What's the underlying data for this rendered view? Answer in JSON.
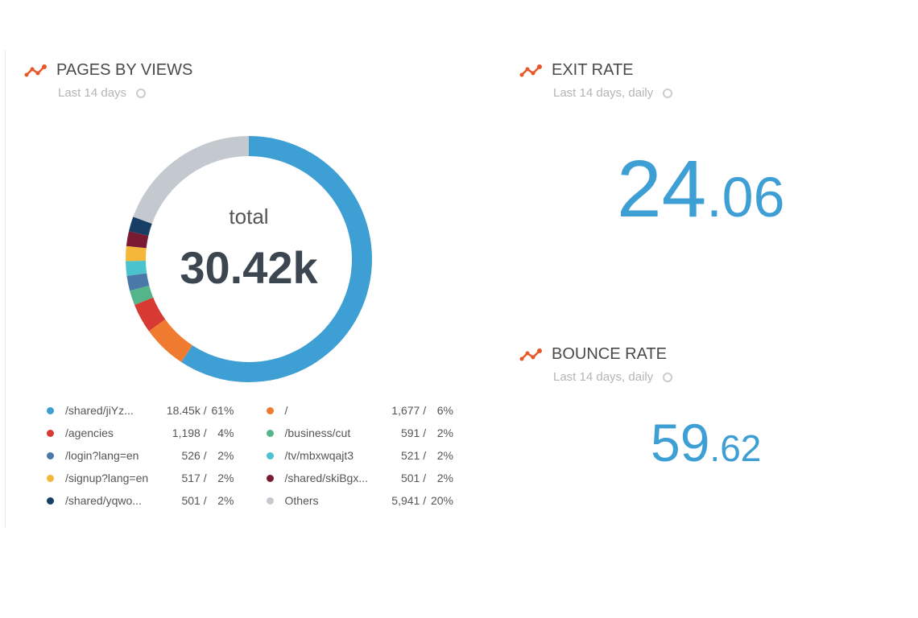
{
  "pages": {
    "title": "PAGES BY VIEWS",
    "subtitle": "Last 14 days",
    "center_label": "total",
    "center_value": "30.42k"
  },
  "exit_rate": {
    "title": "EXIT RATE",
    "subtitle": "Last 14 days, daily",
    "int": "24",
    "dec": ".06"
  },
  "bounce_rate": {
    "title": "BOUNCE RATE",
    "subtitle": "Last 14 days, daily",
    "int": "59",
    "dec": ".62"
  },
  "colors": {
    "accent": "#e8572a",
    "metric": "#3d9fd3"
  },
  "chart_data": {
    "type": "pie",
    "donut": true,
    "slices": [
      {
        "label": "/shared/jiYz...",
        "value_text": "18.45k",
        "pct": 61,
        "color": "#3d9fd3"
      },
      {
        "label": "/",
        "value_text": "1,677",
        "pct": 6,
        "color": "#ef7b30"
      },
      {
        "label": "/agencies",
        "value_text": "1,198",
        "pct": 4,
        "color": "#d63a32"
      },
      {
        "label": "/business/cut",
        "value_text": "591",
        "pct": 2,
        "color": "#55b58a"
      },
      {
        "label": "/login?lang=en",
        "value_text": "526",
        "pct": 2,
        "color": "#4a78a8"
      },
      {
        "label": "/tv/mbxwqajt3",
        "value_text": "521",
        "pct": 2,
        "color": "#4bc3cf"
      },
      {
        "label": "/signup?lang=en",
        "value_text": "517",
        "pct": 2,
        "color": "#f4b73a"
      },
      {
        "label": "/shared/skiBgx...",
        "value_text": "501",
        "pct": 2,
        "color": "#7a1a33"
      },
      {
        "label": "/shared/yqwo...",
        "value_text": "501",
        "pct": 2,
        "color": "#173f66"
      },
      {
        "label": "Others",
        "value_text": "5,941",
        "pct": 20,
        "color": "#c3c9ce"
      }
    ],
    "legend_order": [
      0,
      1,
      2,
      3,
      4,
      5,
      6,
      7,
      8,
      9
    ]
  }
}
